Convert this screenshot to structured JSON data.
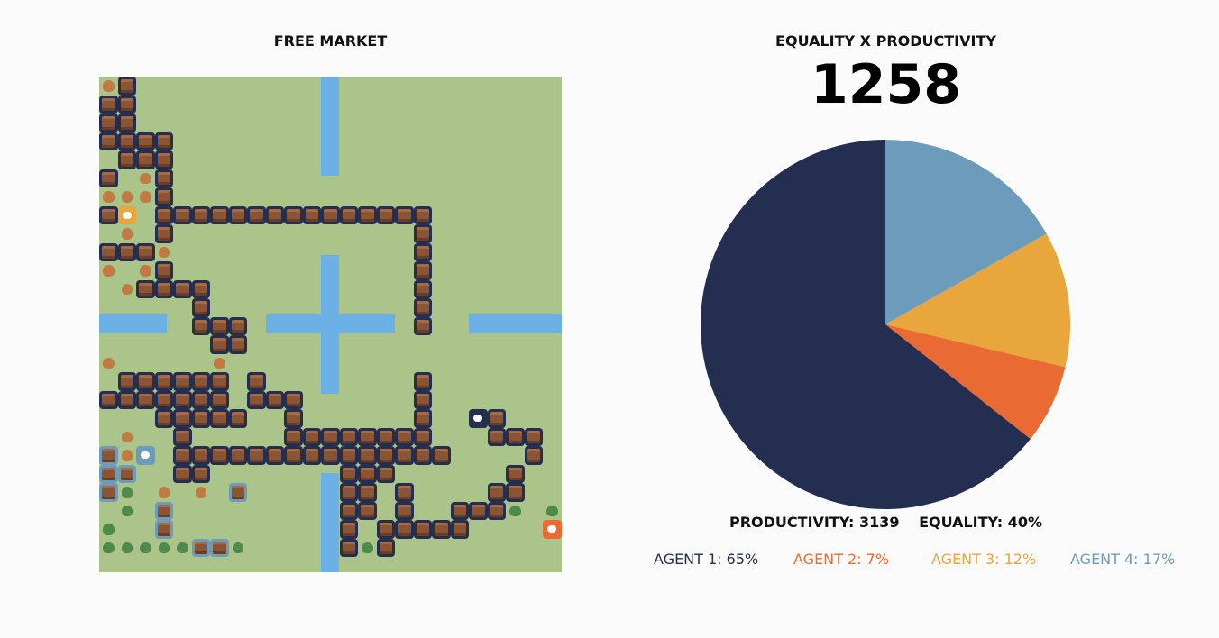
{
  "left_panel": {
    "title": "FREE MARKET"
  },
  "right_panel": {
    "title": "EQUALITY X PRODUCTIVITY",
    "score": "1258",
    "productivity_label": "PRODUCTIVITY: 3139",
    "equality_label": "EQUALITY: 40%"
  },
  "chart_data": {
    "type": "pie",
    "title": "EQUALITY X PRODUCTIVITY",
    "slices": [
      {
        "name": "AGENT 1",
        "value": 65,
        "color": "#242e50"
      },
      {
        "name": "AGENT 2",
        "value": 7,
        "color": "#e96b33"
      },
      {
        "name": "AGENT 3",
        "value": 12,
        "color": "#e8a63c"
      },
      {
        "name": "AGENT 4",
        "value": 17,
        "color": "#6c9bbb"
      }
    ]
  },
  "legend": [
    {
      "label": "AGENT 1: 65%",
      "color": "#242e50"
    },
    {
      "label": "AGENT 2: 7%",
      "color": "#e96b33"
    },
    {
      "label": "AGENT 3: 12%",
      "color": "#e8a63c"
    },
    {
      "label": "AGENT 4: 17%",
      "color": "#6c9bbb"
    }
  ],
  "map": {
    "legend_icons": [
      "house-icon",
      "wood-icon",
      "stone-icon",
      "agent-icon",
      "tree-icon",
      "water-icon"
    ],
    "colors": {
      "grass": "#abc489",
      "water": "#6cb1e6",
      "house_border_agent1": "#242e50",
      "house_border_agent4": "#6c9bbb",
      "agent2": "#e96b33",
      "agent3": "#e8a63c"
    }
  }
}
